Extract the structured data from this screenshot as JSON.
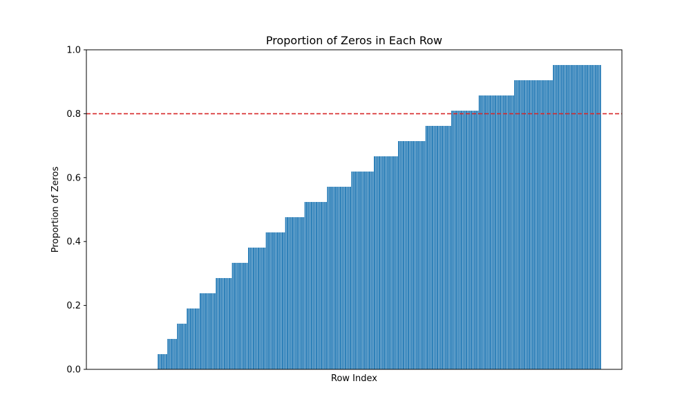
{
  "chart_data": {
    "type": "bar",
    "title": "Proportion of Zeros in Each Row",
    "xlabel": "Row Index",
    "ylabel": "Proportion of Zeros",
    "ylim": [
      0,
      1.0
    ],
    "yticks": [
      "0.0",
      "0.2",
      "0.4",
      "0.6",
      "0.8",
      "1.0"
    ],
    "x_ticks_visible": false,
    "bar_color": "#1f77b4",
    "threshold": {
      "value": 0.8,
      "color": "#d62728",
      "style": "dashed"
    },
    "levels": [
      {
        "value": 0.0476,
        "count": 6
      },
      {
        "value": 0.0952,
        "count": 6
      },
      {
        "value": 0.1429,
        "count": 6
      },
      {
        "value": 0.1905,
        "count": 8
      },
      {
        "value": 0.2381,
        "count": 10
      },
      {
        "value": 0.2857,
        "count": 10
      },
      {
        "value": 0.3333,
        "count": 10
      },
      {
        "value": 0.381,
        "count": 11
      },
      {
        "value": 0.4286,
        "count": 12
      },
      {
        "value": 0.4762,
        "count": 12
      },
      {
        "value": 0.5238,
        "count": 14
      },
      {
        "value": 0.5714,
        "count": 15
      },
      {
        "value": 0.619,
        "count": 14
      },
      {
        "value": 0.6667,
        "count": 15
      },
      {
        "value": 0.7143,
        "count": 17
      },
      {
        "value": 0.7619,
        "count": 16
      },
      {
        "value": 0.8095,
        "count": 17
      },
      {
        "value": 0.8571,
        "count": 22
      },
      {
        "value": 0.9048,
        "count": 24
      },
      {
        "value": 0.9524,
        "count": 30
      }
    ],
    "empty_leading_rows": 42
  }
}
